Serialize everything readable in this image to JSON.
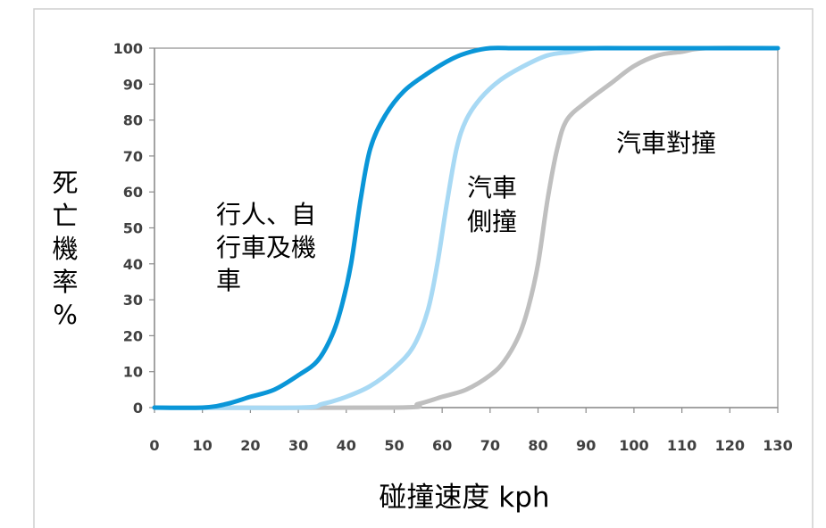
{
  "chart_data": {
    "type": "line",
    "title": "",
    "xlabel": "碰撞速度 kph",
    "ylabel": [
      "死",
      "亡",
      "機",
      "率",
      "%"
    ],
    "xlim": [
      0,
      130
    ],
    "ylim": [
      0,
      100
    ],
    "x_ticks": [
      "0",
      "10",
      "20",
      "30",
      "40",
      "50",
      "60",
      "70",
      "80",
      "90",
      "100",
      "110",
      "120",
      "130"
    ],
    "y_ticks": [
      "0",
      "10",
      "20",
      "30",
      "40",
      "50",
      "60",
      "70",
      "80",
      "90",
      "100"
    ],
    "grid": false,
    "legend": "none",
    "series": [
      {
        "color": "#0a96d8",
        "x": [
          0,
          10,
          15,
          20,
          25,
          30,
          34,
          37,
          39,
          41,
          43,
          45,
          48,
          52,
          57,
          62,
          66,
          70,
          75,
          80,
          90,
          130
        ],
        "y": [
          0,
          0,
          1,
          3,
          5,
          9,
          13,
          20,
          28,
          40,
          58,
          72,
          81,
          88,
          93,
          97,
          99,
          100,
          100,
          100,
          100,
          100
        ]
      },
      {
        "color": "#a8d9f4",
        "x": [
          0,
          30,
          35,
          40,
          45,
          50,
          54,
          57,
          59,
          61,
          63,
          65,
          68,
          72,
          77,
          82,
          87,
          92,
          100,
          130
        ],
        "y": [
          0,
          0,
          1,
          3,
          6,
          11,
          17,
          27,
          40,
          57,
          72,
          80,
          86,
          91,
          95,
          98,
          99,
          100,
          100,
          100
        ]
      },
      {
        "color": "#bfbfbf",
        "x": [
          0,
          50,
          55,
          60,
          65,
          70,
          73,
          76,
          78,
          80,
          82,
          84,
          86,
          90,
          95,
          100,
          105,
          110,
          115,
          130
        ],
        "y": [
          0,
          0,
          1,
          3,
          5,
          9,
          13,
          20,
          28,
          40,
          58,
          72,
          80,
          85,
          90,
          95,
          98,
          99,
          100,
          100
        ]
      }
    ],
    "annotations": [
      {
        "lines": [
          "行人、自",
          "行車及機",
          "車"
        ]
      },
      {
        "lines": [
          "汽車",
          "側撞"
        ]
      },
      {
        "lines": [
          "汽車對撞"
        ]
      }
    ]
  }
}
